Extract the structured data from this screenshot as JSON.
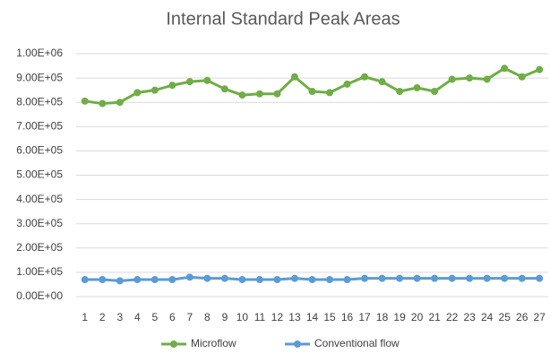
{
  "chart_data": {
    "type": "line",
    "title": "Internal Standard Peak Areas",
    "categories": [
      1,
      2,
      3,
      4,
      5,
      6,
      7,
      8,
      9,
      10,
      11,
      12,
      13,
      14,
      15,
      16,
      17,
      18,
      19,
      20,
      21,
      22,
      23,
      24,
      25,
      26,
      27
    ],
    "series": [
      {
        "name": "Microflow",
        "color": "#70ad47",
        "values": [
          805000,
          795000,
          800000,
          840000,
          850000,
          870000,
          885000,
          890000,
          855000,
          830000,
          835000,
          835000,
          905000,
          845000,
          840000,
          875000,
          905000,
          885000,
          845000,
          860000,
          845000,
          895000,
          900000,
          895000,
          940000,
          905000,
          935000
        ]
      },
      {
        "name": "Conventional flow",
        "color": "#5b9bd5",
        "values": [
          70000,
          70000,
          65000,
          70000,
          70000,
          70000,
          80000,
          75000,
          75000,
          70000,
          70000,
          70000,
          75000,
          70000,
          70000,
          70000,
          75000,
          75000,
          75000,
          75000,
          75000,
          75000,
          75000,
          75000,
          75000,
          75000,
          75000
        ]
      }
    ],
    "ylim": [
      0,
      1000000
    ],
    "yticks": [
      {
        "value": 0,
        "label": "0.00E+00"
      },
      {
        "value": 100000,
        "label": "1.00E+05"
      },
      {
        "value": 200000,
        "label": "2.00E+05"
      },
      {
        "value": 300000,
        "label": "3.00E+05"
      },
      {
        "value": 400000,
        "label": "4.00E+05"
      },
      {
        "value": 500000,
        "label": "5.00E+05"
      },
      {
        "value": 600000,
        "label": "6.00E+05"
      },
      {
        "value": 700000,
        "label": "7.00E+05"
      },
      {
        "value": 800000,
        "label": "8.00E+05"
      },
      {
        "value": 900000,
        "label": "9.00E+05"
      },
      {
        "value": 1000000,
        "label": "1.00E+06"
      }
    ],
    "grid": true,
    "legend": "bottom"
  }
}
